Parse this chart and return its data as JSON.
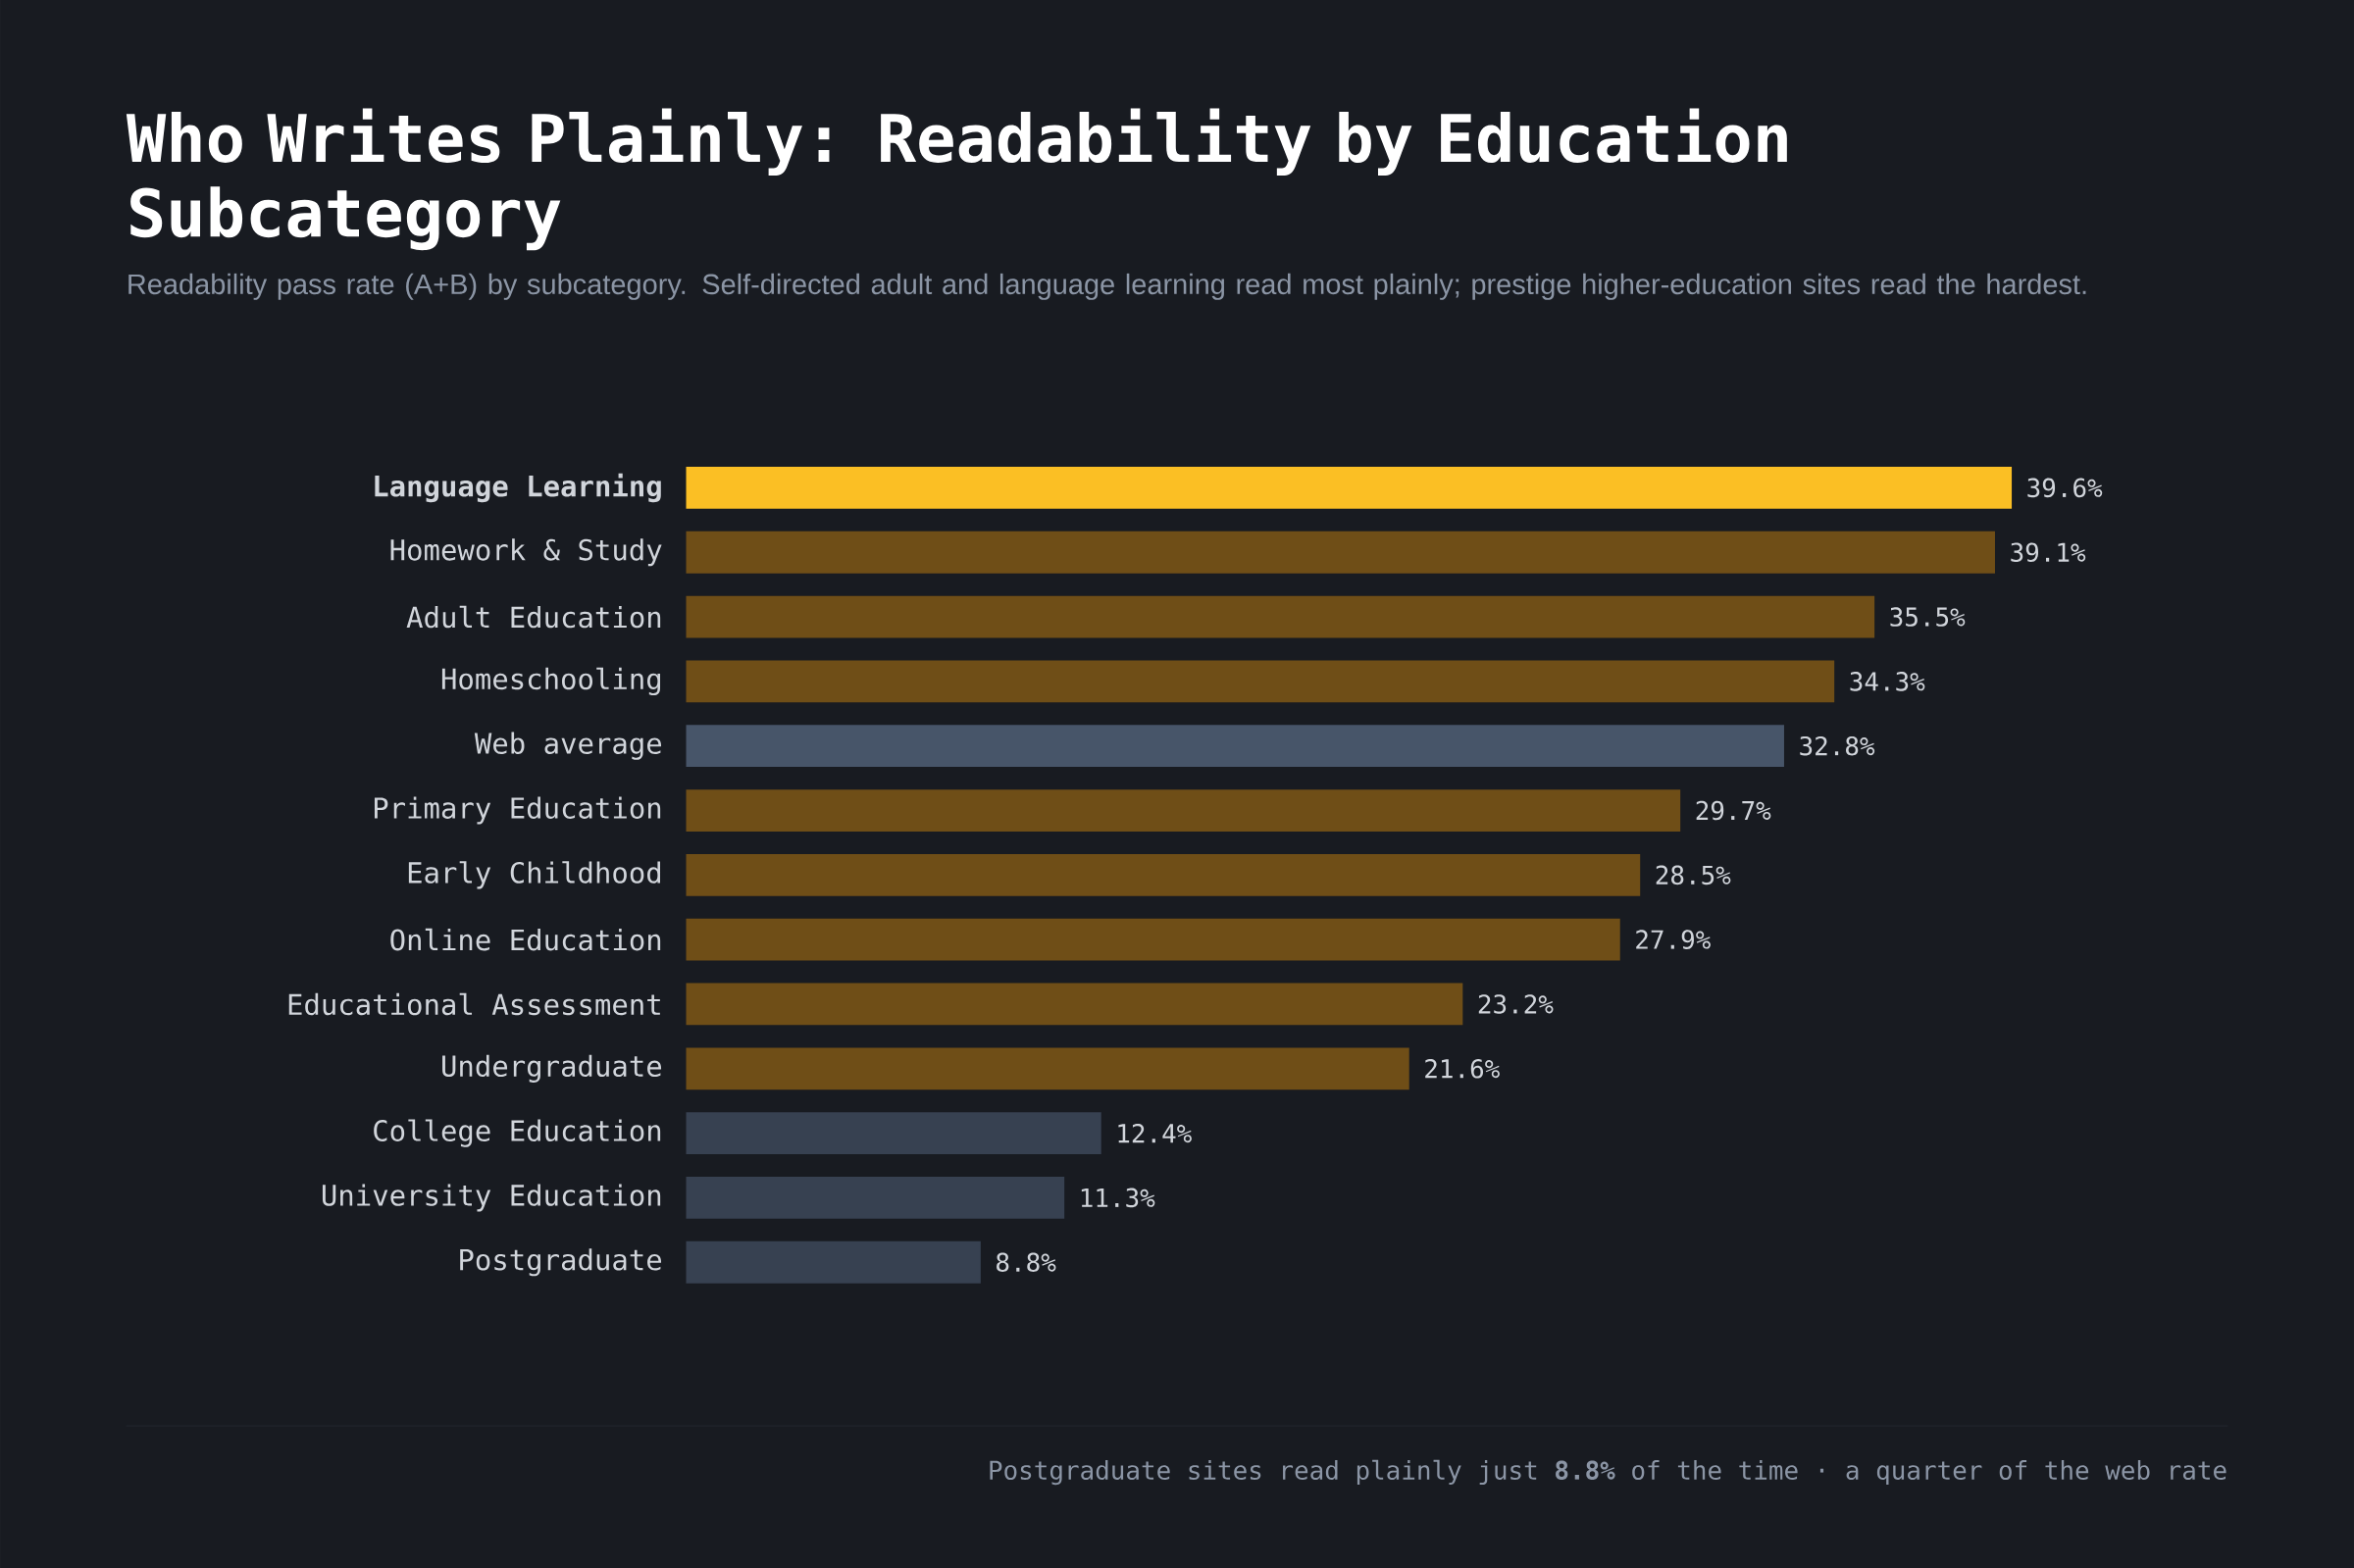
{
  "chart_data": {
    "type": "bar",
    "orientation": "horizontal",
    "title": "Who Writes Plainly: Readability by Education Subcategory",
    "subtitle": "Readability pass rate (A+B) by subcategory. Self-directed adult and language learning read most plainly; prestige higher-education sites read the hardest.",
    "categories": [
      "**Language Learning**",
      "Homework & Study",
      "Adult Education",
      "Homeschooling",
      "Web average",
      "Primary Education",
      "Early Childhood",
      "Online Education",
      "Educational Assessment",
      "Undergraduate",
      "College Education",
      "University Education",
      "Postgraduate"
    ],
    "values": [
      39.6,
      39.1,
      35.5,
      34.3,
      32.8,
      29.7,
      28.5,
      27.9,
      23.2,
      21.6,
      12.4,
      11.3,
      8.8
    ],
    "value_labels": [
      "39.6%",
      "39.1%",
      "35.5%",
      "34.3%",
      "32.8%",
      "29.7%",
      "28.5%",
      "27.9%",
      "23.2%",
      "21.6%",
      "12.4%",
      "11.3%",
      "8.8%"
    ],
    "colors": [
      "#fbbf24",
      "#6f4e17",
      "#6f4e17",
      "#6f4e17",
      "#475569",
      "#6f4e17",
      "#6f4e17",
      "#6f4e17",
      "#6f4e17",
      "#6f4e17",
      "#374151",
      "#374151",
      "#374151"
    ],
    "annotations": [
      "Postgraduate sites read plainly just **8.8%** of the time · a quarter of the web rate"
    ]
  }
}
